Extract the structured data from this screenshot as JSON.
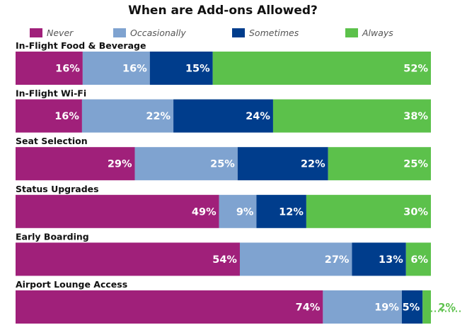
{
  "chart_data": {
    "type": "bar",
    "orientation": "horizontal",
    "stacked": true,
    "title": "When are Add-ons Allowed?",
    "categories": [
      "In-Flight Food & Beverage",
      "In-Flight Wi-Fi",
      "Seat Selection",
      "Status Upgrades",
      "Early Boarding",
      "Airport Lounge Access"
    ],
    "series": [
      {
        "name": "Never",
        "color": "#a0207a",
        "values": [
          16,
          16,
          29,
          49,
          54,
          74
        ]
      },
      {
        "name": "Occasionally",
        "color": "#7fa3d0",
        "values": [
          16,
          22,
          25,
          9,
          27,
          19
        ]
      },
      {
        "name": "Sometimes",
        "color": "#003d8c",
        "values": [
          15,
          24,
          22,
          12,
          13,
          5
        ]
      },
      {
        "name": "Always",
        "color": "#5cc14b",
        "values": [
          52,
          38,
          25,
          30,
          6,
          2
        ]
      }
    ],
    "value_suffix": "%",
    "legend_position": "top",
    "grid": false
  }
}
